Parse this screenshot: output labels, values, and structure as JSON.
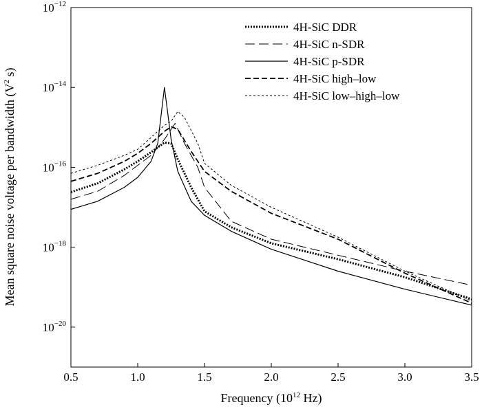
{
  "chart_data": {
    "type": "line",
    "xlabel": "Frequency (10",
    "xlabel_sup": "12",
    "xlabel_end": " Hz)",
    "ylabel": "Mean square noise voltage per bandwidth (V",
    "ylabel_sup": "2",
    "ylabel_end": " s)",
    "xlim": [
      0.5,
      3.5
    ],
    "ylim_log10": [
      -21,
      -12
    ],
    "y_scale": "log",
    "grid": false,
    "legend_position": "top-right",
    "x_ticks": [
      {
        "value": 0.5,
        "label": "0.5"
      },
      {
        "value": 1.0,
        "label": "1.0"
      },
      {
        "value": 1.5,
        "label": "1.5"
      },
      {
        "value": 2.0,
        "label": "2.0"
      },
      {
        "value": 2.5,
        "label": "2.5"
      },
      {
        "value": 3.0,
        "label": "3.0"
      },
      {
        "value": 3.5,
        "label": "3.5"
      }
    ],
    "y_ticks": [
      {
        "exp": -12,
        "base": "10",
        "power": "−12"
      },
      {
        "exp": -14,
        "base": "10",
        "power": "−14"
      },
      {
        "exp": -16,
        "base": "10",
        "power": "−16"
      },
      {
        "exp": -18,
        "base": "10",
        "power": "−18"
      },
      {
        "exp": -20,
        "base": "10",
        "power": "−20"
      }
    ],
    "series": [
      {
        "name": "4H-SiC DDR",
        "dash": "2,2",
        "width": 3,
        "x": [
          0.5,
          0.7,
          0.9,
          1.0,
          1.1,
          1.2,
          1.25,
          1.3,
          1.4,
          1.5,
          1.7,
          2.0,
          2.5,
          3.0,
          3.5
        ],
        "log10y": [
          -16.62,
          -16.4,
          -16.05,
          -15.85,
          -15.62,
          -15.38,
          -15.4,
          -15.8,
          -16.5,
          -17.1,
          -17.5,
          -17.9,
          -18.3,
          -18.75,
          -19.3
        ]
      },
      {
        "name": "4H-SiC n-SDR",
        "dash": "14,6",
        "width": 1,
        "x": [
          0.5,
          0.7,
          0.9,
          1.0,
          1.1,
          1.2,
          1.28,
          1.35,
          1.45,
          1.5,
          1.7,
          2.0,
          2.5,
          3.0,
          3.5
        ],
        "log10y": [
          -16.8,
          -16.6,
          -16.2,
          -15.95,
          -15.7,
          -15.3,
          -14.9,
          -15.4,
          -16.0,
          -16.5,
          -17.35,
          -17.8,
          -18.2,
          -18.6,
          -18.95
        ]
      },
      {
        "name": "4H-SiC p-SDR",
        "dash": "",
        "width": 1.2,
        "x": [
          0.5,
          0.7,
          0.9,
          1.0,
          1.1,
          1.15,
          1.2,
          1.25,
          1.3,
          1.4,
          1.5,
          1.7,
          2.0,
          2.5,
          3.0,
          3.5
        ],
        "log10y": [
          -17.05,
          -16.85,
          -16.5,
          -16.25,
          -15.85,
          -15.4,
          -14.0,
          -15.3,
          -16.1,
          -16.85,
          -17.2,
          -17.6,
          -18.05,
          -18.6,
          -19.05,
          -19.45
        ]
      },
      {
        "name": "4H-SiC high–low",
        "dash": "8,4",
        "width": 1.8,
        "x": [
          0.5,
          0.7,
          0.9,
          1.0,
          1.1,
          1.2,
          1.25,
          1.3,
          1.4,
          1.5,
          1.7,
          2.0,
          2.5,
          3.0,
          3.5
        ],
        "log10y": [
          -16.35,
          -16.15,
          -15.85,
          -15.65,
          -15.4,
          -15.1,
          -14.98,
          -15.05,
          -15.6,
          -16.1,
          -16.6,
          -17.15,
          -17.8,
          -18.65,
          -19.4
        ]
      },
      {
        "name": "4H-SiC low–high–low",
        "dash": "3,3",
        "width": 1,
        "x": [
          0.5,
          0.7,
          0.9,
          1.0,
          1.1,
          1.2,
          1.25,
          1.3,
          1.35,
          1.45,
          1.5,
          1.7,
          2.0,
          2.5,
          3.0,
          3.5
        ],
        "log10y": [
          -16.15,
          -15.95,
          -15.7,
          -15.55,
          -15.25,
          -14.95,
          -14.85,
          -14.6,
          -14.75,
          -15.4,
          -15.9,
          -16.45,
          -17.0,
          -17.75,
          -18.6,
          -19.35
        ]
      }
    ]
  }
}
